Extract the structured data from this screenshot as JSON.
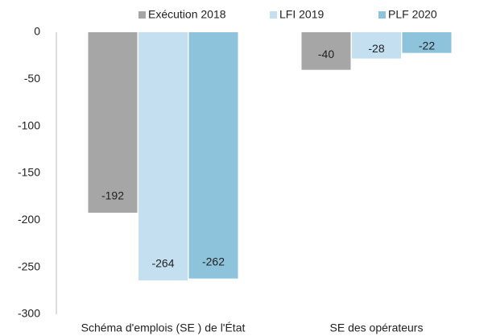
{
  "chart_data": {
    "type": "bar",
    "categories": [
      "Schéma d'emplois (SE ) de l'État",
      "SE des opérateurs"
    ],
    "series": [
      {
        "name": "Exécution 2018",
        "color": "#a6a6a6",
        "values": [
          -192,
          -40
        ]
      },
      {
        "name": "LFI 2019",
        "color": "#c3dff0",
        "values": [
          -264,
          -28
        ]
      },
      {
        "name": "PLF 2020",
        "color": "#8ec3dc",
        "values": [
          -262,
          -22
        ]
      }
    ],
    "ylim": [
      -300,
      0
    ],
    "yticks": [
      0,
      -50,
      -100,
      -150,
      -200,
      -250,
      -300
    ],
    "grid": false,
    "legend": "top"
  }
}
